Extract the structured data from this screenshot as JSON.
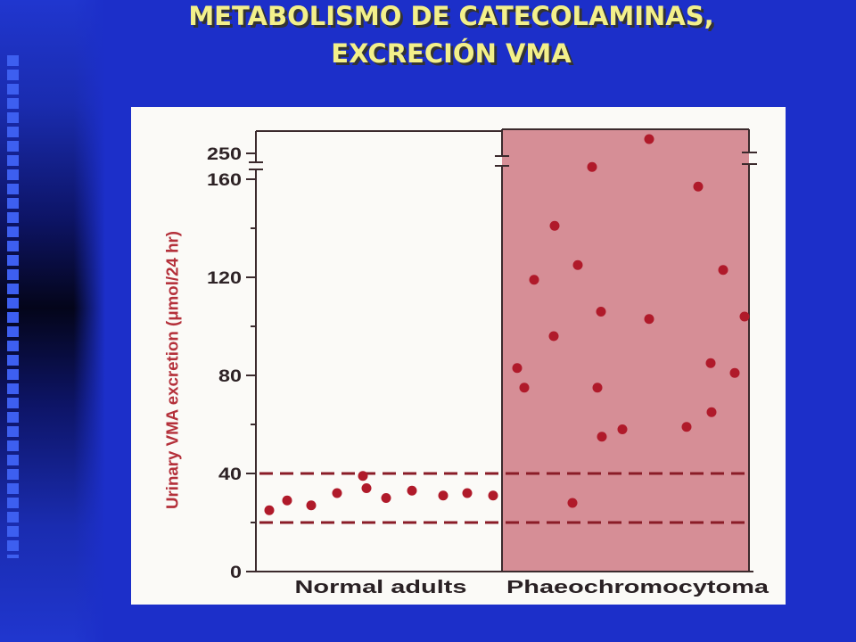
{
  "slide": {
    "title_lines": [
      "METABOLISMO DE CATECOLAMINAS,",
      "EXCRECIÓN VMA"
    ]
  },
  "colors": {
    "slide_background": "#1c2fc9",
    "title_text": "#f3f08a",
    "chart_background": "#fbfaf7",
    "shaded_region": "#d68e96",
    "data_point": "#b01a2a",
    "reference_line": "#8a1c27",
    "y_axis_label": "#b4303a",
    "axis": "#3b2a2d"
  },
  "chart_data": {
    "type": "scatter",
    "categories": [
      "Normal adults",
      "Phaeochromocytoma"
    ],
    "values": [
      [
        25,
        29,
        27,
        32,
        39,
        34,
        30,
        33,
        31,
        32,
        31
      ],
      [
        83,
        75,
        119,
        96,
        141,
        28,
        125,
        165,
        75,
        106,
        55,
        58,
        260,
        103,
        59,
        157,
        85,
        65,
        123,
        81,
        104
      ]
    ],
    "shaded_categories": [
      false,
      true
    ],
    "xlabel": "",
    "ylabel": "Urinary VMA excretion (μmol/24 hr)",
    "yticks": [
      0,
      40,
      80,
      120,
      160,
      250
    ],
    "y_minor_ticks": [
      20,
      60,
      100,
      140
    ],
    "y_axis_break": [
      160,
      250
    ],
    "ylim": [
      0,
      265
    ],
    "reference_lines": [
      {
        "y": 40,
        "style": "dashed"
      },
      {
        "y": 20,
        "style": "dashed"
      }
    ],
    "grid": false,
    "legend": "none"
  }
}
